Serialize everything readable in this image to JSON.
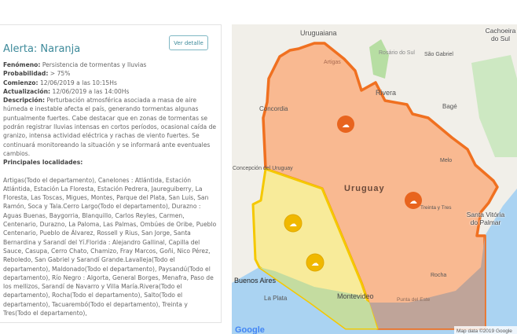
{
  "alert": {
    "title": "Alerta: Naranja",
    "detail_button": "Ver detalle",
    "fenomeno_label": "Fenómeno:",
    "fenomeno": "Persistencia de tormentas y lluvias",
    "probabilidad_label": "Probabilidad:",
    "probabilidad": "> 75%",
    "comienzo_label": "Comienzo:",
    "comienzo": "12/06/2019 a las 10:15Hs",
    "actualizacion_label": "Actualización:",
    "actualizacion": "12/06/2019 a las 14:00Hs",
    "descripcion_label": "Descripción:",
    "descripcion": "Perturbación atmosférica asociada a masa de aire húmeda e inestable afecta el país, generando tormentas algunas puntualmente fuertes. Cabe destacar que en zonas de tormentas se podrán registrar lluvias intensas en cortos períodos, ocasional caída de granizo, intensa actividad eléctrica y rachas de viento fuertes. Se continuará monitoreando la situación y se informará ante eventuales cambios.",
    "localidades_label": "Principales localidades:",
    "localidades": "Artigas(Todo el departamento), Canelones : Atlántida, Estación Atlántida, Estación La Floresta, Estación Pedrera, Jaureguiberry, La Floresta, Las Toscas, Migues, Montes, Parque del Plata, San Luis, San Ramón, Soca y Tala.Cerro Largo(Todo el departamento), Durazno : Aguas Buenas, Baygorria, Blanquillo, Carlos Reyles, Carmen, Centenario, Durazno, La Paloma, Las Palmas, Ombúes de Oribe, Pueblo Centenario, Pueblo de Álvarez, Rossell y Rius, San Jorge, Santa Bernardina y Sarandí del Yí.Florida : Alejandro Gallinal, Capilla del Sauce, Casupa, Cerro Chato, Chamizo, Fray Marcos, Goñi, Nico Pérez, Reboledo, San Gabriel y Sarandí Grande.Lavalleja(Todo el departamento), Maldonado(Todo el departamento), Paysandú(Todo el departamento), Río Negro : Algorta, General Borges, Menafra, Paso de los mellizos, Sarandí de Navarro y Villa María.Rivera(Todo el departamento), Rocha(Todo el departamento), Salto(Todo el departamento), Tacuarembó(Todo el departamento), Treinta y Tres(Todo el departamento),"
  },
  "map": {
    "labels": {
      "uruguay": "Uruguay",
      "montevideo": "Montevideo",
      "buenos_aires": "Buenos Aires",
      "la_plata": "La Plata",
      "concordia": "Concordia",
      "uruguaiana": "Uruguaiana",
      "rivera": "Rivera",
      "bage": "Bagé",
      "sao_gabriel": "São Gabriel",
      "rosario": "Rosário do Sul",
      "cachoeira": "Cachoeira do Sul",
      "melo": "Melo",
      "treinta": "Treinta y Tres",
      "rocha": "Rocha",
      "punta": "Punta del Este",
      "artigas": "Artigas",
      "concepcion": "Concepción del Uruguay",
      "santa_vitoria": "Santa Vitória do Palmar"
    },
    "attribution": "Map data ©2019 Google",
    "logo": "Google",
    "colors": {
      "orange_alert": "#f07020",
      "orange_fill": "#f9b58c",
      "yellow_alert": "#f5c800",
      "yellow_fill": "#f8eb9a"
    }
  }
}
